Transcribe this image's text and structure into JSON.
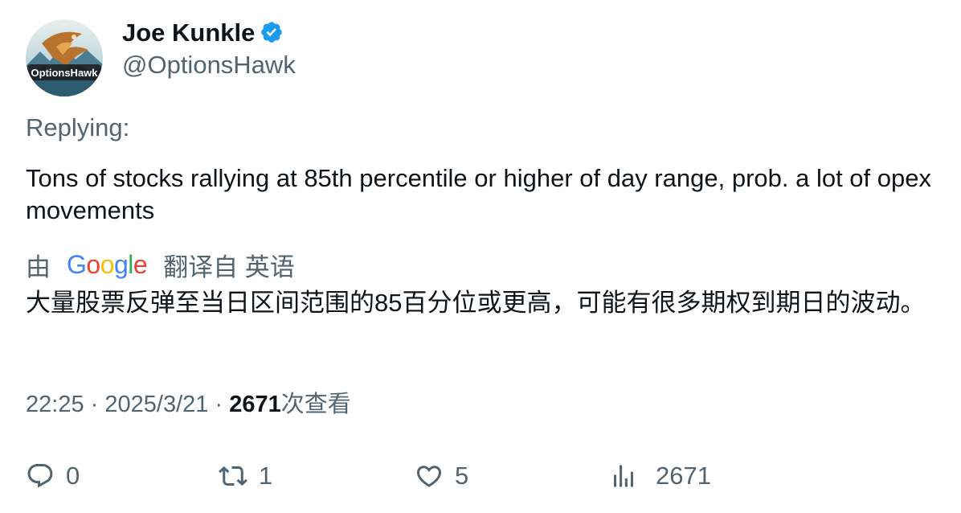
{
  "author": {
    "display_name": "Joe Kunkle",
    "handle": "@OptionsHawk",
    "avatar_icon": "hawk-logo-avatar",
    "avatar_text": "OptionsHawk",
    "verified": true,
    "verified_color": "#1d9bf0"
  },
  "replying_label": "Replying:",
  "tweet_text": "Tons of stocks rallying at 85th percentile or higher of day range, prob. a lot of opex movements",
  "translation": {
    "prefix": "由",
    "provider": "Google",
    "label": "翻译自 英语",
    "text": "大量股票反弹至当日区间范围的85百分位或更高，可能有很多期权到期日的波动。"
  },
  "meta": {
    "time": "22:25",
    "separator": "·",
    "date": "2025/3/21",
    "views_count": "2671",
    "views_label": "次查看"
  },
  "actions": {
    "replies": "0",
    "retweets": "1",
    "likes": "5",
    "views": "2671"
  },
  "colors": {
    "text_primary": "#0f1419",
    "text_secondary": "#536471",
    "accent": "#1d9bf0"
  }
}
